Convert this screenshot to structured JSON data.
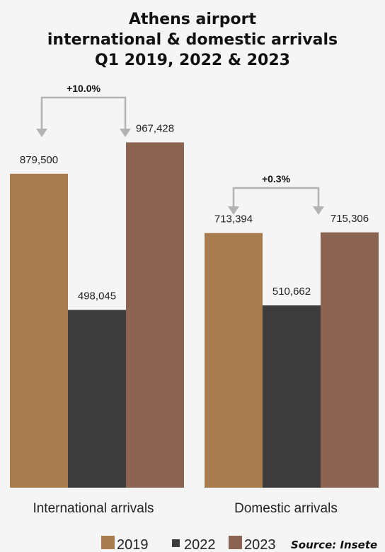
{
  "chart_data": {
    "type": "bar",
    "title": [
      "Athens airport",
      "international & domestic arrivals",
      "Q1 2019, 2022 & 2023"
    ],
    "categories": [
      "International arrivals",
      "Domestic arrivals"
    ],
    "series": [
      {
        "name": "2019",
        "color": "#a87c4f",
        "values": [
          879500,
          713394
        ],
        "labels": [
          "879,500",
          "713,394"
        ]
      },
      {
        "name": "2022",
        "color": "#3c3c3c",
        "values": [
          498045,
          510662
        ],
        "labels": [
          "498,045",
          "510,662"
        ]
      },
      {
        "name": "2023",
        "color": "#8b6551",
        "values": [
          967428,
          715306
        ],
        "labels": [
          "967,428",
          "715,306"
        ]
      }
    ],
    "annotations": [
      {
        "category": "International arrivals",
        "from": "2019",
        "to": "2023",
        "text": "+10.0%"
      },
      {
        "category": "Domestic arrivals",
        "from": "2019",
        "to": "2023",
        "text": "+0.3%"
      }
    ],
    "ylim": [
      0,
      1050000
    ],
    "grid": false,
    "legend_position": "bottom",
    "source": "Source: Insete"
  }
}
